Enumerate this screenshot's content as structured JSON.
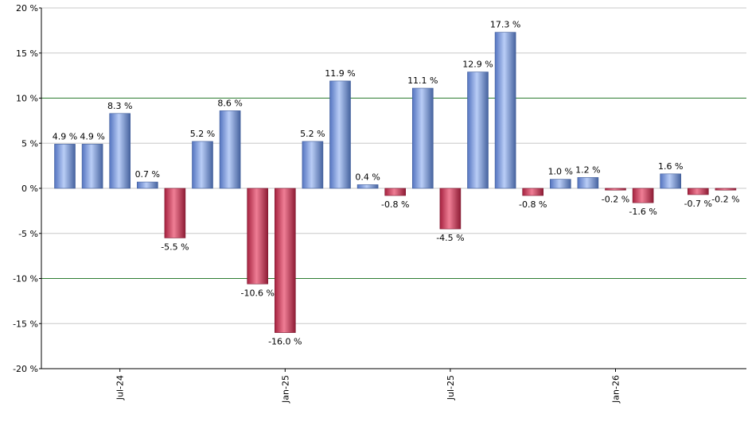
{
  "chart_data": {
    "type": "bar",
    "title": "",
    "xlabel": "",
    "ylabel": "",
    "ylim": [
      -20,
      20
    ],
    "yticks": [
      20,
      15,
      10,
      5,
      0,
      -5,
      -10,
      -15,
      -20
    ],
    "ytick_labels": [
      "20 %",
      "15 %",
      "10 %",
      "5 %",
      "0 %",
      "-5 %",
      "-10 %",
      "-15 %",
      "-20 %"
    ],
    "grid": true,
    "highlight_lines": [
      10,
      -10
    ],
    "x_ticks": [
      {
        "label": "Jul-24",
        "index": 2
      },
      {
        "label": "Jan-25",
        "index": 8
      },
      {
        "label": "Jul-25",
        "index": 14
      },
      {
        "label": "Jan-26",
        "index": 20
      }
    ],
    "values": [
      4.9,
      4.9,
      8.3,
      0.7,
      -5.5,
      5.2,
      8.6,
      -10.6,
      -16.0,
      5.2,
      11.9,
      0.4,
      -0.8,
      11.1,
      -4.5,
      12.9,
      17.3,
      -0.8,
      1.0,
      1.2,
      -0.2,
      -1.6,
      1.6,
      -0.7,
      -0.2
    ],
    "labels": [
      "4.9 %",
      "4.9 %",
      "8.3 %",
      "0.7 %",
      "-5.5 %",
      "5.2 %",
      "8.6 %",
      "-10.6 %",
      "-16.0 %",
      "5.2 %",
      "11.9 %",
      "0.4 %",
      "-0.8 %",
      "11.1 %",
      "-4.5 %",
      "12.9 %",
      "17.3 %",
      "-0.8 %",
      "1.0 %",
      "1.2 %",
      "-0.2 %",
      "-1.6 %",
      "1.6 %",
      "-0.7 %",
      "-0.2 %"
    ],
    "colors": {
      "positive": "#7b9ee6",
      "negative": "#d0405f",
      "grid": "#c8c8c8",
      "highlight": "#2e7d32",
      "axis": "#000000"
    }
  }
}
